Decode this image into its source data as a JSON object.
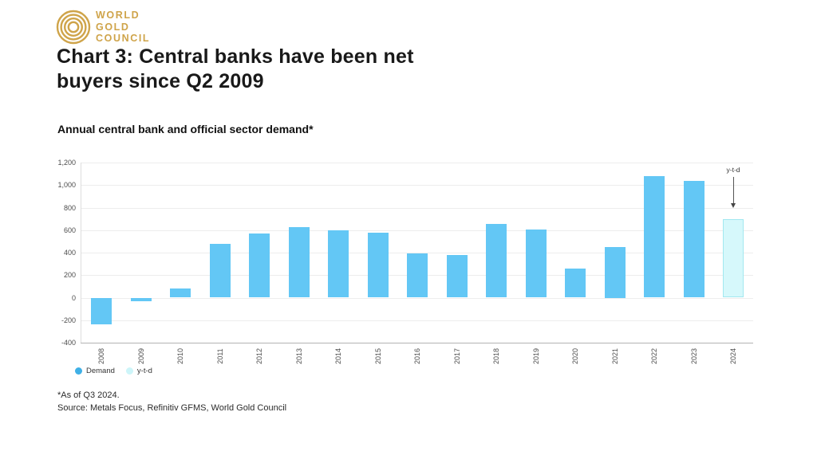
{
  "brand": {
    "logo_lines": [
      "WORLD",
      "GOLD",
      "COUNCIL"
    ],
    "logo_color": "#CFA44A"
  },
  "title_lines": [
    "Chart 3: Central banks have been net",
    "buyers since Q2 2009"
  ],
  "subtitle": "Annual central bank and official sector demand*",
  "footnotes": [
    "*As of Q3 2024.",
    "Source: Metals Focus, Refinitiv GFMS, World Gold Council"
  ],
  "legend": [
    {
      "label": "Demand",
      "swatch": "#3fb0e6"
    },
    {
      "label": "y-t-d",
      "swatch": "#cdf5f9"
    }
  ],
  "annotation": {
    "label": "y-t-d"
  },
  "chart_data": {
    "type": "bar",
    "title": "Annual central bank and official sector demand*",
    "categories": [
      "2008",
      "2009",
      "2010",
      "2011",
      "2012",
      "2013",
      "2014",
      "2015",
      "2016",
      "2017",
      "2018",
      "2019",
      "2020",
      "2021",
      "2022",
      "2023",
      "2024"
    ],
    "series": [
      {
        "name": "Demand",
        "values": [
          -235,
          -34,
          79,
          481,
          569,
          629,
          601,
          580,
          395,
          379,
          656,
          605,
          255,
          450,
          1082,
          1037,
          694
        ]
      }
    ],
    "ytd_category": "2024",
    "ytd_value": 694,
    "ytd_label": "y-t-d",
    "ylim": [
      -400,
      1200
    ],
    "ytick_step": 200,
    "ytick_labels": [
      "-400",
      "-200",
      "0",
      "200",
      "400",
      "600",
      "800",
      "1,000",
      "1,200"
    ],
    "grid": "horizontal",
    "legend_position": "bottom-left",
    "colors": {
      "bar": "#63c7f5",
      "ytd_fill": "#d6f8fb",
      "ytd_border": "#a2e8f0"
    }
  }
}
